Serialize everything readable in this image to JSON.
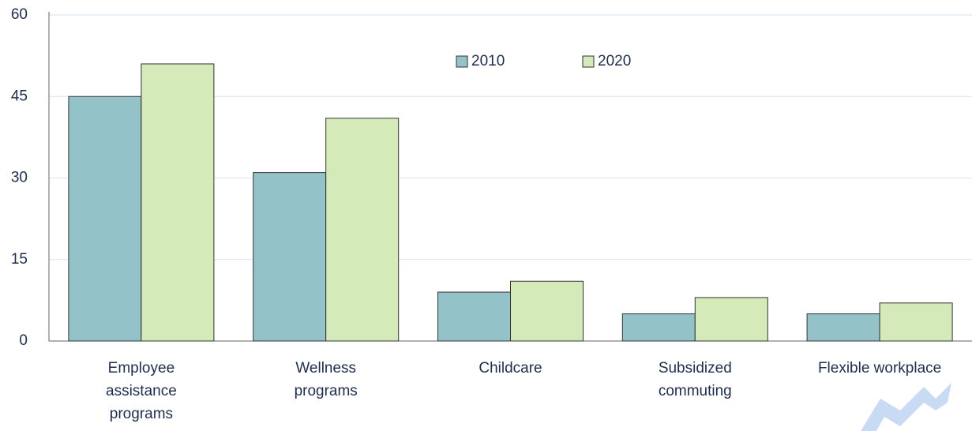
{
  "chart_data": {
    "type": "bar",
    "categories": [
      "Employee\nassistance\nprograms",
      "Wellness\nprograms",
      "Childcare",
      "Subsidized\ncommuting",
      "Flexible workplace"
    ],
    "series": [
      {
        "name": "2010",
        "color": "#93c3c8",
        "values": [
          45,
          31,
          9,
          5,
          5
        ]
      },
      {
        "name": "2020",
        "color": "#d4eab8",
        "values": [
          51,
          41,
          11,
          8,
          7
        ]
      }
    ],
    "ylim": [
      0,
      60
    ],
    "yticks": [
      0,
      15,
      30,
      45,
      60
    ],
    "grid": true,
    "legend": "top"
  }
}
